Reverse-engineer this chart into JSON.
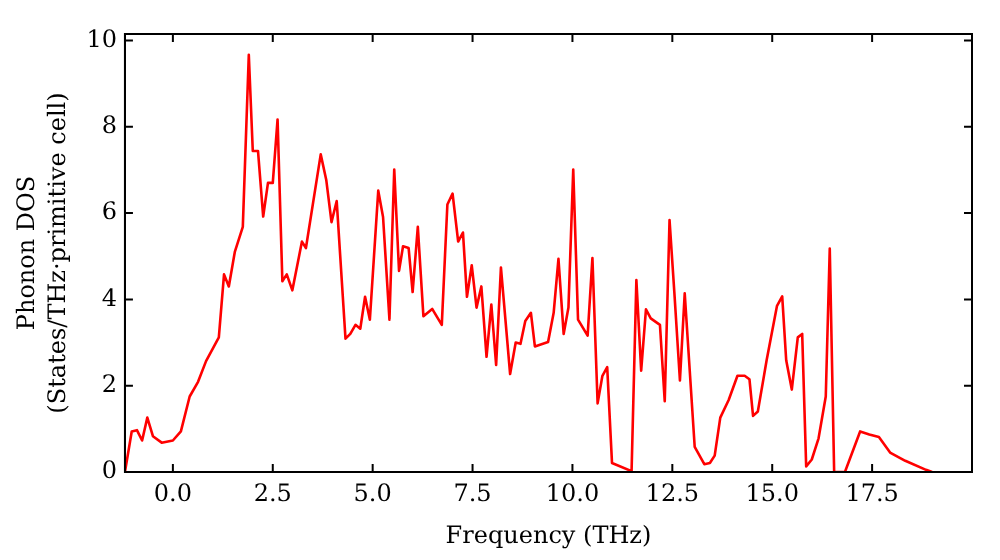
{
  "chart_data": {
    "type": "line",
    "xlabel": "Frequency (THz)",
    "ylabel": "Phonon DOS\n(States/THz·primitive cell)",
    "series": [
      {
        "color": "#ff0000",
        "x": [
          -1.2,
          -1.03,
          -0.9,
          -0.77,
          -0.64,
          -0.5,
          -0.28,
          0.0,
          0.2,
          0.42,
          0.63,
          0.83,
          1.15,
          1.28,
          1.4,
          1.55,
          1.75,
          1.9,
          2.0,
          2.13,
          2.26,
          2.38,
          2.5,
          2.62,
          2.74,
          2.85,
          2.99,
          3.23,
          3.33,
          3.7,
          3.84,
          3.97,
          4.1,
          4.32,
          4.44,
          4.57,
          4.69,
          4.81,
          4.93,
          5.14,
          5.26,
          5.42,
          5.54,
          5.66,
          5.76,
          5.9,
          6.0,
          6.13,
          6.27,
          6.49,
          6.73,
          6.87,
          7.0,
          7.14,
          7.26,
          7.36,
          7.48,
          7.6,
          7.72,
          7.85,
          7.97,
          8.09,
          8.21,
          8.44,
          8.58,
          8.7,
          8.82,
          8.96,
          9.06,
          9.39,
          9.53,
          9.65,
          9.78,
          9.9,
          10.02,
          10.14,
          10.38,
          10.5,
          10.63,
          10.75,
          10.87,
          10.99,
          11.48,
          11.6,
          11.72,
          11.84,
          11.96,
          12.19,
          12.31,
          12.43,
          12.55,
          12.69,
          12.81,
          13.06,
          13.3,
          13.44,
          13.56,
          13.7,
          13.91,
          14.13,
          14.31,
          14.43,
          14.52,
          14.64,
          14.86,
          15.12,
          15.25,
          15.35,
          15.49,
          15.64,
          15.75,
          15.85,
          15.99,
          16.16,
          16.34,
          16.44,
          16.55,
          16.82,
          17.2,
          17.43,
          17.67,
          17.95,
          18.33,
          18.85,
          19.0
        ],
        "values": [
          0.0,
          0.94,
          0.97,
          0.73,
          1.26,
          0.83,
          0.68,
          0.73,
          0.94,
          1.75,
          2.09,
          2.57,
          3.12,
          4.58,
          4.3,
          5.1,
          5.68,
          9.67,
          7.44,
          7.44,
          5.92,
          6.7,
          6.7,
          8.17,
          4.42,
          4.58,
          4.21,
          5.34,
          5.19,
          7.36,
          6.76,
          5.79,
          6.28,
          3.09,
          3.2,
          3.41,
          3.32,
          4.06,
          3.53,
          6.52,
          5.91,
          3.53,
          7.01,
          4.66,
          5.23,
          5.19,
          4.17,
          5.68,
          3.61,
          3.78,
          3.41,
          6.2,
          6.45,
          5.34,
          5.55,
          4.06,
          4.79,
          3.81,
          4.3,
          2.67,
          3.88,
          2.48,
          4.74,
          2.27,
          3.0,
          2.97,
          3.5,
          3.69,
          2.91,
          3.01,
          3.69,
          4.94,
          3.2,
          3.81,
          7.01,
          3.53,
          3.16,
          4.96,
          1.59,
          2.23,
          2.43,
          0.21,
          0.02,
          4.45,
          2.35,
          3.77,
          3.56,
          3.41,
          1.64,
          5.84,
          4.17,
          2.12,
          4.14,
          0.58,
          0.18,
          0.21,
          0.38,
          1.26,
          1.67,
          2.23,
          2.23,
          2.15,
          1.3,
          1.4,
          2.59,
          3.85,
          4.07,
          2.59,
          1.91,
          3.12,
          3.2,
          0.13,
          0.29,
          0.78,
          1.75,
          5.18,
          0.0,
          0.0,
          0.94,
          0.87,
          0.81,
          0.45,
          0.26,
          0.05,
          0.0
        ]
      }
    ],
    "xlim": [
      -1.2,
      20
    ],
    "xticks": [
      {
        "value": 0,
        "label": "0.0"
      },
      2.5,
      {
        "value": 5,
        "label": "5.0"
      },
      7.5,
      {
        "value": 10,
        "label": "10.0"
      },
      12.5,
      {
        "value": 15,
        "label": "15.0"
      },
      17.5
    ],
    "ylim": [
      0,
      10.15
    ],
    "yticks": [
      0,
      2,
      4,
      6,
      8,
      10
    ],
    "legend": false,
    "marker": "none",
    "line_style": "solid"
  }
}
